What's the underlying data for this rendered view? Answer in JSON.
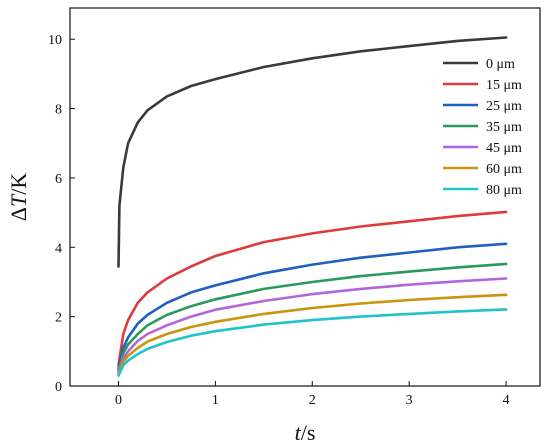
{
  "chart_data": {
    "type": "line",
    "title": "",
    "xlabel": {
      "symbol": "t",
      "unit": "/s"
    },
    "ylabel": {
      "prefix": "Δ",
      "symbol": "T",
      "unit": "/K"
    },
    "xlim": [
      -0.5,
      4.35
    ],
    "ylim": [
      0,
      10.9
    ],
    "xticks": [
      0,
      1,
      2,
      3,
      4
    ],
    "yticks": [
      0,
      2,
      4,
      6,
      8,
      10
    ],
    "grid": false,
    "legend_position": "top-right",
    "series": [
      {
        "name": "0 μm",
        "color": "#3a3a3a",
        "x": [
          0,
          0.01,
          0.05,
          0.1,
          0.2,
          0.3,
          0.5,
          0.75,
          1,
          1.5,
          2,
          2.5,
          3,
          3.5,
          4
        ],
        "y": [
          3.45,
          5.2,
          6.3,
          7.0,
          7.6,
          7.95,
          8.35,
          8.65,
          8.85,
          9.2,
          9.45,
          9.65,
          9.8,
          9.95,
          10.05
        ]
      },
      {
        "name": "15 μm",
        "color": "#e0393a",
        "x": [
          0,
          0.05,
          0.1,
          0.2,
          0.3,
          0.5,
          0.75,
          1,
          1.5,
          2,
          2.5,
          3,
          3.5,
          4
        ],
        "y": [
          0.6,
          1.5,
          1.9,
          2.4,
          2.7,
          3.1,
          3.45,
          3.75,
          4.15,
          4.4,
          4.6,
          4.75,
          4.9,
          5.02
        ]
      },
      {
        "name": "25 μm",
        "color": "#1f5fc4",
        "x": [
          0,
          0.05,
          0.1,
          0.2,
          0.3,
          0.5,
          0.75,
          1,
          1.5,
          2,
          2.5,
          3,
          3.5,
          4
        ],
        "y": [
          0.5,
          1.1,
          1.4,
          1.8,
          2.05,
          2.4,
          2.7,
          2.9,
          3.25,
          3.5,
          3.7,
          3.85,
          4.0,
          4.1
        ]
      },
      {
        "name": "35 μm",
        "color": "#2a9a5c",
        "x": [
          0,
          0.05,
          0.1,
          0.2,
          0.3,
          0.5,
          0.75,
          1,
          1.5,
          2,
          2.5,
          3,
          3.5,
          4
        ],
        "y": [
          0.45,
          0.95,
          1.2,
          1.5,
          1.75,
          2.05,
          2.3,
          2.5,
          2.8,
          3.0,
          3.17,
          3.3,
          3.42,
          3.52
        ]
      },
      {
        "name": "45 μm",
        "color": "#b266d9",
        "x": [
          0,
          0.05,
          0.1,
          0.2,
          0.3,
          0.5,
          0.75,
          1,
          1.5,
          2,
          2.5,
          3,
          3.5,
          4
        ],
        "y": [
          0.4,
          0.8,
          1.0,
          1.3,
          1.5,
          1.75,
          2.0,
          2.2,
          2.45,
          2.65,
          2.8,
          2.92,
          3.02,
          3.1
        ]
      },
      {
        "name": "60 μm",
        "color": "#c9940e",
        "x": [
          0,
          0.05,
          0.1,
          0.2,
          0.3,
          0.5,
          0.75,
          1,
          1.5,
          2,
          2.5,
          3,
          3.5,
          4
        ],
        "y": [
          0.35,
          0.7,
          0.87,
          1.1,
          1.28,
          1.5,
          1.7,
          1.85,
          2.08,
          2.25,
          2.38,
          2.48,
          2.56,
          2.63
        ]
      },
      {
        "name": "80 μm",
        "color": "#1fc4c9",
        "x": [
          0,
          0.05,
          0.1,
          0.2,
          0.3,
          0.5,
          0.75,
          1,
          1.5,
          2,
          2.5,
          3,
          3.5,
          4
        ],
        "y": [
          0.3,
          0.6,
          0.73,
          0.92,
          1.07,
          1.27,
          1.45,
          1.58,
          1.77,
          1.9,
          2.0,
          2.08,
          2.15,
          2.21
        ]
      }
    ]
  }
}
